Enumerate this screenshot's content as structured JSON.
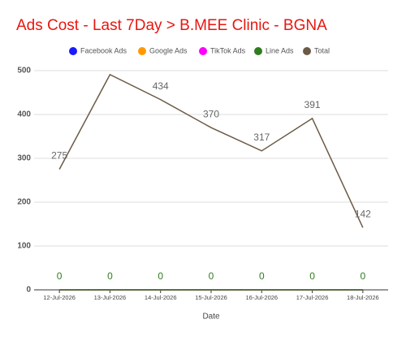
{
  "chart_data": {
    "type": "line",
    "title": "Ads Cost - Last 7Day > B.MEE Clinic - BGNA",
    "x_label": "Date",
    "categories": [
      "12-Jul-2026",
      "13-Jul-2026",
      "14-Jul-2026",
      "15-Jul-2026",
      "16-Jul-2026",
      "17-Jul-2026",
      "18-Jul-2026"
    ],
    "series": [
      {
        "name": "Facebook Ads",
        "color": "#1a1aff",
        "values": [
          0,
          0,
          0,
          0,
          0,
          0,
          0
        ]
      },
      {
        "name": "Google Ads",
        "color": "#ff9900",
        "values": [
          0,
          0,
          0,
          0,
          0,
          0,
          0
        ]
      },
      {
        "name": "TikTok Ads",
        "color": "#ff00ff",
        "values": [
          0,
          0,
          0,
          0,
          0,
          0,
          0
        ]
      },
      {
        "name": "Line Ads",
        "color": "#2e7d1f",
        "values": [
          0,
          0,
          0,
          0,
          0,
          0,
          0
        ],
        "value_labels": [
          "0",
          "0",
          "0",
          "0",
          "0",
          "0",
          "0"
        ]
      },
      {
        "name": "Total",
        "color": "#6b5a45",
        "values": [
          275,
          491,
          434,
          370,
          317,
          391,
          142
        ],
        "value_labels": [
          "275",
          null,
          "434",
          "370",
          "317",
          "391",
          "142"
        ]
      }
    ],
    "ylim": [
      0,
      500
    ],
    "yticks": [
      0,
      100,
      200,
      300,
      400,
      500
    ],
    "grid": true
  }
}
